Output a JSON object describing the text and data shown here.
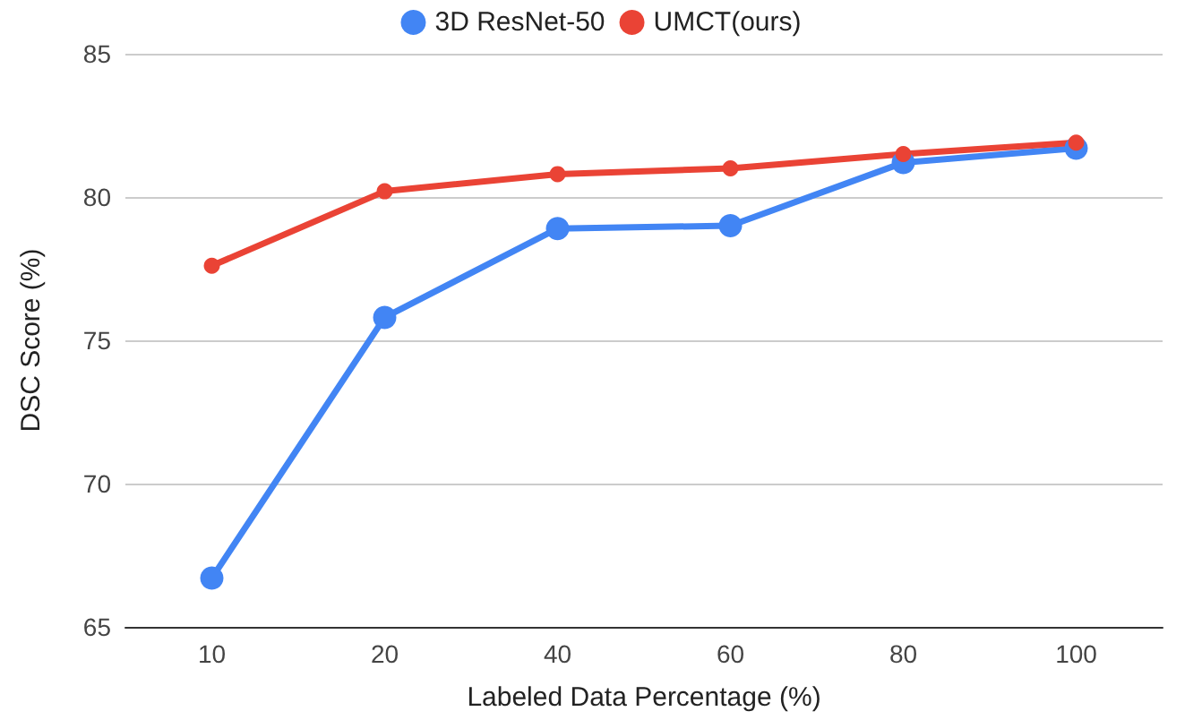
{
  "chart_data": {
    "type": "line",
    "xlabel": "Labeled Data Percentage (%)",
    "ylabel": "DSC Score (%)",
    "categories": [
      "10",
      "20",
      "40",
      "60",
      "80",
      "100"
    ],
    "series": [
      {
        "name": "3D ResNet-50",
        "color": "#4285f4",
        "values": [
          66.7,
          75.8,
          78.9,
          79.0,
          81.2,
          81.7
        ]
      },
      {
        "name": "UMCT(ours)",
        "color": "#ea4335",
        "values": [
          77.6,
          80.2,
          80.8,
          81.0,
          81.5,
          81.9
        ]
      }
    ],
    "ylim": [
      65,
      85
    ],
    "yticks": [
      65,
      70,
      75,
      80,
      85
    ],
    "grid": "y",
    "legend": "top",
    "marker": "circle",
    "line_style": "solid"
  }
}
